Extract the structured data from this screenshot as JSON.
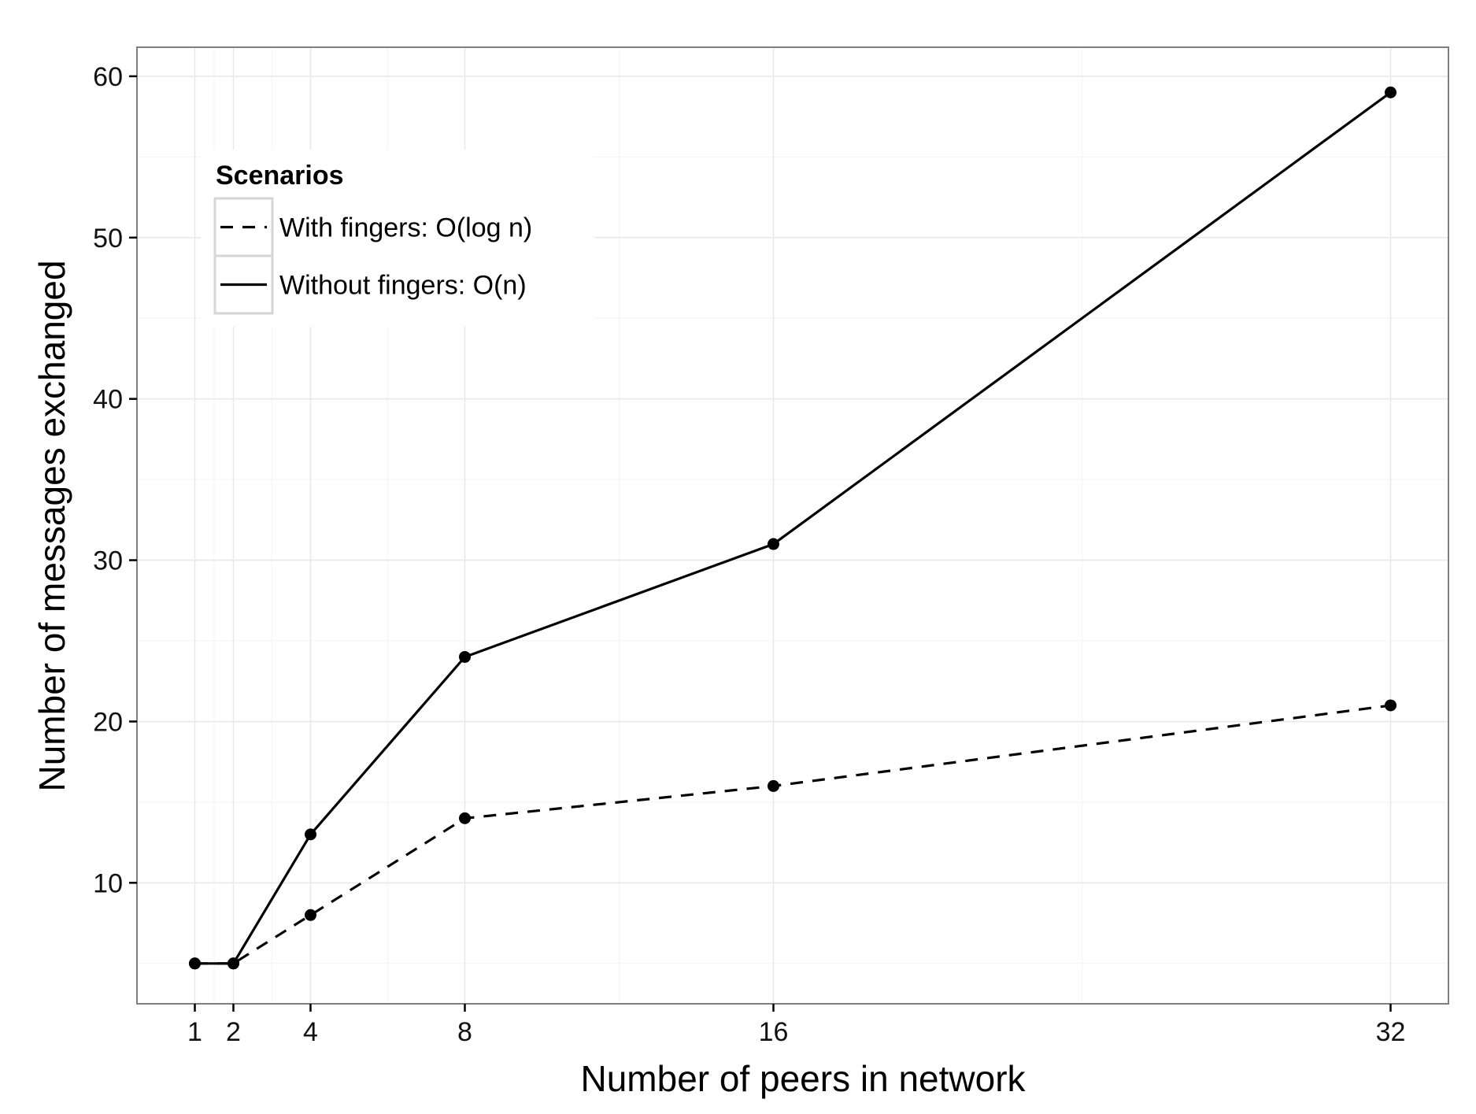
{
  "chart_data": {
    "type": "line",
    "title": "",
    "xlabel": "Number of peers in network",
    "ylabel": "Number of messages exchanged",
    "x": [
      1,
      2,
      4,
      8,
      16,
      32
    ],
    "x_tick_labels": [
      "1",
      "2",
      "4",
      "8",
      "16",
      "32"
    ],
    "y_ticks": [
      10,
      20,
      30,
      40,
      50,
      60
    ],
    "y_tick_labels": [
      "10",
      "20",
      "30",
      "40",
      "50",
      "60"
    ],
    "xlim": [
      -0.5,
      33.5
    ],
    "ylim": [
      2.5,
      61.8
    ],
    "grid": true,
    "legend": {
      "title": "Scenarios",
      "placement": "top-left inside"
    },
    "series": [
      {
        "name": "With fingers: O(log n)",
        "line_style": "dashed",
        "color": "#000000",
        "values": [
          5,
          5,
          8,
          14,
          16,
          21
        ]
      },
      {
        "name": "Without fingers: O(n)",
        "line_style": "solid",
        "color": "#000000",
        "values": [
          5,
          5,
          13,
          24,
          31,
          59
        ]
      }
    ]
  }
}
